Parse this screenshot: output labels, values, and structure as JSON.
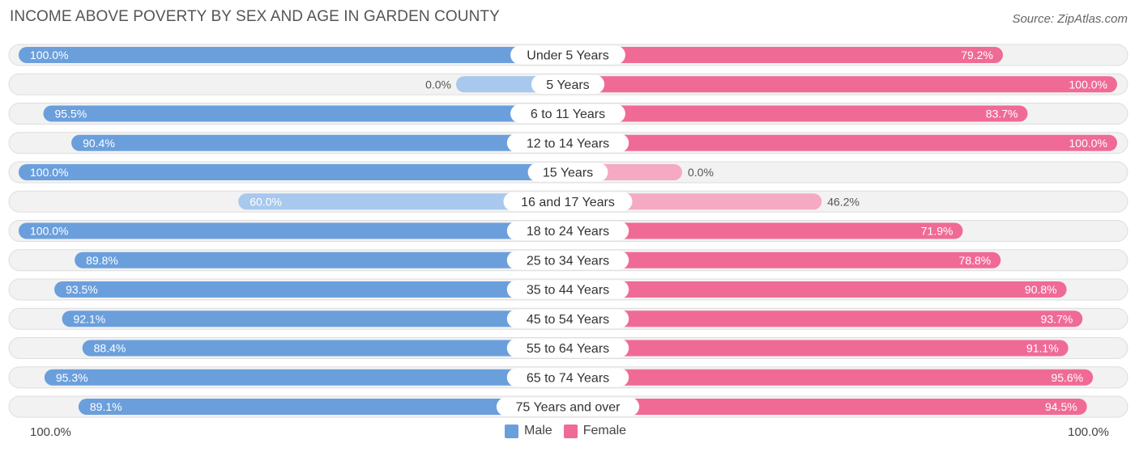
{
  "header": {
    "title": "INCOME ABOVE POVERTY BY SEX AND AGE IN GARDEN COUNTY",
    "source": "Source: ZipAtlas.com"
  },
  "axis": {
    "left_label": "100.0%",
    "right_label": "100.0%"
  },
  "legend": {
    "male_label": "Male",
    "female_label": "Female"
  },
  "colors": {
    "male_strong": "#6a9fdc",
    "male_light": "#a8c8ee",
    "female_strong": "#f06a96",
    "female_light": "#f5a9c3",
    "track": "#f2f2f2",
    "track_border": "#dddddd"
  },
  "chart_data": {
    "type": "bar",
    "orientation": "horizontal-diverging",
    "title": "INCOME ABOVE POVERTY BY SEX AND AGE IN GARDEN COUNTY",
    "xlim": [
      -100,
      100
    ],
    "categories": [
      "Under 5 Years",
      "5 Years",
      "6 to 11 Years",
      "12 to 14 Years",
      "15 Years",
      "16 and 17 Years",
      "18 to 24 Years",
      "25 to 34 Years",
      "35 to 44 Years",
      "45 to 54 Years",
      "55 to 64 Years",
      "65 to 74 Years",
      "75 Years and over"
    ],
    "series": [
      {
        "name": "Male",
        "values": [
          100.0,
          0.0,
          95.5,
          90.4,
          100.0,
          60.0,
          100.0,
          89.8,
          93.5,
          92.1,
          88.4,
          95.3,
          89.1
        ],
        "labels": [
          "100.0%",
          "0.0%",
          "95.5%",
          "90.4%",
          "100.0%",
          "60.0%",
          "100.0%",
          "89.8%",
          "93.5%",
          "92.1%",
          "88.4%",
          "95.3%",
          "89.1%"
        ]
      },
      {
        "name": "Female",
        "values": [
          79.2,
          100.0,
          83.7,
          100.0,
          0.0,
          46.2,
          71.9,
          78.8,
          90.8,
          93.7,
          91.1,
          95.6,
          94.5
        ],
        "labels": [
          "79.2%",
          "100.0%",
          "83.7%",
          "100.0%",
          "0.0%",
          "46.2%",
          "71.9%",
          "78.8%",
          "90.8%",
          "93.7%",
          "91.1%",
          "95.6%",
          "94.5%"
        ]
      }
    ]
  }
}
